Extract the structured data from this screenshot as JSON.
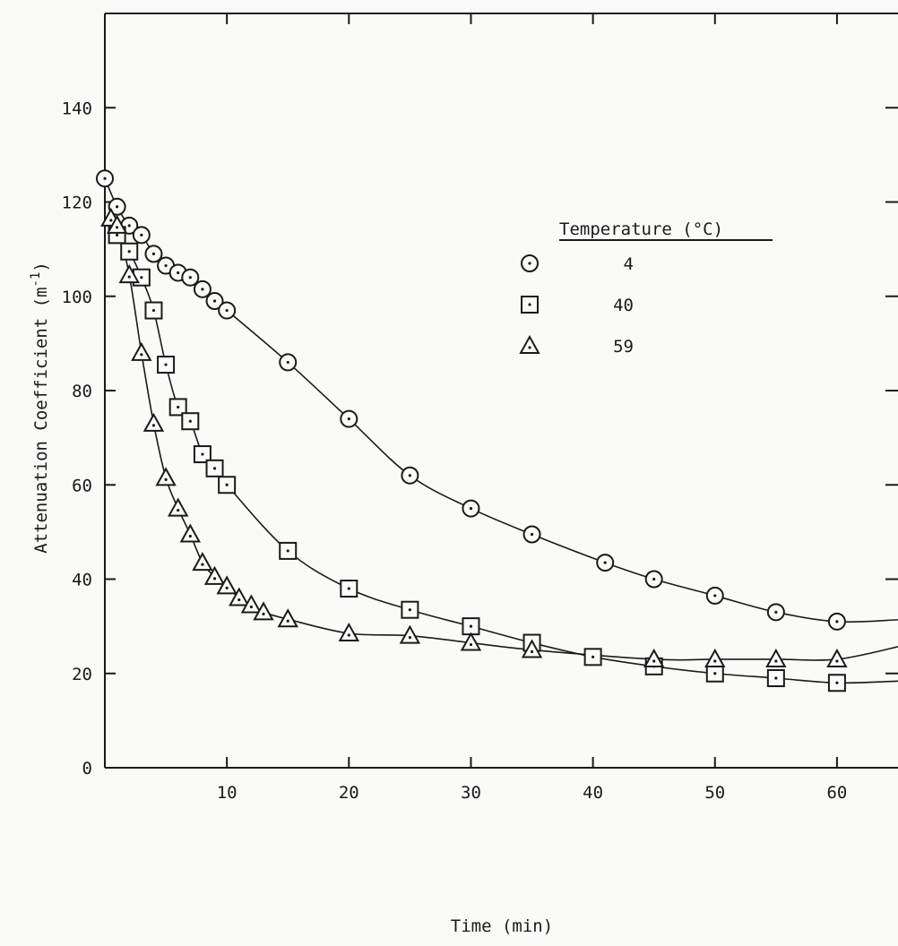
{
  "chart_data": {
    "type": "scatter",
    "title": "",
    "xlabel": "Time (min)",
    "ylabel": "Attenuation Coefficient (m",
    "ylabel_sup": "-1",
    "ylabel_close": ")",
    "xlim": [
      0,
      65
    ],
    "ylim": [
      0,
      160
    ],
    "grid": false,
    "x_ticks": [
      10,
      20,
      30,
      40,
      50,
      60
    ],
    "x_tick_labels": [
      "10",
      "20",
      "30",
      "40",
      "50",
      "60"
    ],
    "y_ticks": [
      0,
      20,
      40,
      60,
      80,
      100,
      120,
      140
    ],
    "y_tick_labels": [
      "0",
      "20",
      "40",
      "60",
      "80",
      "100",
      "120",
      "140"
    ],
    "legend": {
      "title": "Temperature (°C)",
      "placement": "upper-right",
      "entries": [
        "4",
        "40",
        "59"
      ]
    },
    "series": [
      {
        "name": "4",
        "marker": "circle",
        "x": [
          0,
          1,
          2,
          3,
          4,
          5,
          6,
          7,
          8,
          9,
          10,
          15,
          20,
          25,
          30,
          35,
          41,
          45,
          50,
          55,
          60
        ],
        "y": [
          125,
          119,
          115,
          113,
          109,
          106.5,
          105,
          104,
          101.5,
          99,
          97,
          86,
          74,
          62,
          55,
          49.5,
          43.5,
          40,
          36.5,
          33,
          31
        ]
      },
      {
        "name": "40",
        "marker": "square",
        "x": [
          1,
          2,
          3,
          4,
          5,
          6,
          7,
          8,
          9,
          10,
          15,
          20,
          25,
          30,
          35,
          40,
          45,
          50,
          55,
          60
        ],
        "y": [
          113,
          109.5,
          104,
          97,
          85.5,
          76.5,
          73.5,
          66.5,
          63.5,
          60,
          46,
          38,
          33.5,
          30,
          26.5,
          23.5,
          21.5,
          20,
          19,
          18
        ]
      },
      {
        "name": "59",
        "marker": "triangle",
        "x": [
          0.5,
          1,
          2,
          3,
          4,
          5,
          6,
          7,
          8,
          9,
          10,
          11,
          12,
          13,
          15,
          20,
          25,
          30,
          35,
          45,
          50,
          55,
          60
        ],
        "y": [
          116.5,
          115,
          104.5,
          88,
          73,
          61.5,
          55,
          49.5,
          43.5,
          40.5,
          38.5,
          36,
          34.5,
          33,
          31.5,
          28.5,
          28,
          26.5,
          25,
          23,
          23,
          23,
          23
        ]
      }
    ]
  },
  "style": {
    "ink": "#1a1a1a",
    "background": "#fafaf8"
  }
}
